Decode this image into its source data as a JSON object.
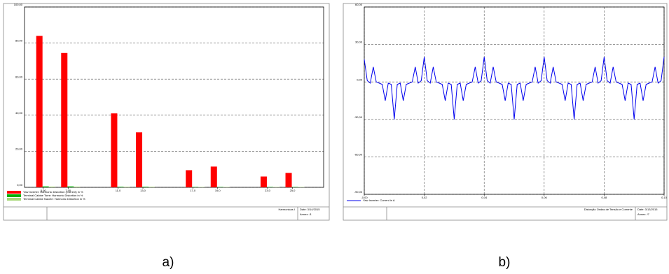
{
  "chart_data": [
    {
      "type": "bar",
      "caption": "a)",
      "x": [
        5,
        7,
        11,
        13,
        17,
        19,
        23,
        25
      ],
      "xlim": [
        3.5,
        27.5
      ],
      "xticks": [
        {
          "value": 5,
          "label": "5,00"
        },
        {
          "value": 7,
          "label": "7,00"
        },
        {
          "value": 11,
          "label": "11,0"
        },
        {
          "value": 13,
          "label": "13,0"
        },
        {
          "value": 17,
          "label": "17,0"
        },
        {
          "value": 19,
          "label": "19,0"
        },
        {
          "value": 23,
          "label": "23,0"
        },
        {
          "value": 25,
          "label": "25,0"
        }
      ],
      "ylim": [
        0,
        100
      ],
      "yticks": [
        {
          "value": 0,
          "label": "0,00"
        },
        {
          "value": 20,
          "label": "20,00"
        },
        {
          "value": 40,
          "label": "40,00"
        },
        {
          "value": 60,
          "label": "60,00"
        },
        {
          "value": 80,
          "label": "80,00"
        },
        {
          "value": 100,
          "label": "100,00"
        }
      ],
      "grid": true,
      "xgrid": false,
      "series": [
        {
          "name": "Yaw Inverter: Harmonic Distortion (Current) in %",
          "color": "#ff0000",
          "values": [
            84,
            74.5,
            41,
            30.5,
            9.5,
            11.5,
            6,
            8
          ]
        },
        {
          "name": "Terminal Cabine Torre: Harmonic Distortion in %",
          "color": "#00b000",
          "values": [
            0.5,
            0.5,
            0.3,
            0.3,
            0.2,
            0.2,
            0.2,
            0.2
          ]
        },
        {
          "name": "Terminal Cabine Nacele: Harmonic Distortion in %",
          "color": "#a8d878",
          "values": [
            0.4,
            0.4,
            0.3,
            0.3,
            0.2,
            0.2,
            0.2,
            0.2
          ]
        }
      ],
      "footer": {
        "title": "Harmonicas I",
        "date": "Date: 3/14/2015",
        "annex": "Annex: /1"
      }
    },
    {
      "type": "line",
      "caption": "b)",
      "x": [
        0,
        0.001,
        0.002,
        0.003,
        0.004,
        0.005,
        0.006,
        0.007,
        0.008,
        0.009,
        0.01,
        0.011,
        0.012,
        0.013,
        0.014,
        0.015,
        0.016,
        0.017,
        0.018,
        0.019,
        0.02,
        0.021,
        0.022,
        0.023,
        0.024,
        0.025,
        0.026,
        0.027,
        0.028,
        0.029,
        0.03,
        0.031,
        0.032,
        0.033,
        0.034,
        0.035,
        0.036,
        0.037,
        0.038,
        0.039,
        0.04,
        0.041,
        0.042,
        0.043,
        0.044,
        0.045,
        0.046,
        0.047,
        0.048,
        0.049,
        0.05,
        0.051,
        0.052,
        0.053,
        0.054,
        0.055,
        0.056,
        0.057,
        0.058,
        0.059,
        0.06,
        0.061,
        0.062,
        0.063,
        0.064,
        0.065,
        0.066,
        0.067,
        0.068,
        0.069,
        0.07,
        0.071,
        0.072,
        0.073,
        0.074,
        0.075,
        0.076,
        0.077,
        0.078,
        0.079,
        0.08,
        0.081,
        0.082,
        0.083,
        0.084,
        0.085,
        0.086,
        0.087,
        0.088,
        0.089,
        0.09,
        0.091,
        0.092,
        0.093,
        0.094,
        0.095,
        0.096,
        0.097,
        0.098,
        0.099,
        0.1
      ],
      "xlim": [
        0,
        0.1
      ],
      "xticks": [
        {
          "value": 0,
          "label": "-0,00"
        },
        {
          "value": 0.02,
          "label": "0,02"
        },
        {
          "value": 0.04,
          "label": "0,04"
        },
        {
          "value": 0.06,
          "label": "0,06"
        },
        {
          "value": 0.08,
          "label": "0,08"
        },
        {
          "value": 0.1,
          "label": "0,10"
        }
      ],
      "ylim": [
        -90,
        60
      ],
      "yticks": [
        {
          "value": -90,
          "label": "-90,00"
        },
        {
          "value": -60,
          "label": "-60,00"
        },
        {
          "value": -30,
          "label": "-30,00"
        },
        {
          "value": 0,
          "label": "0,00"
        },
        {
          "value": 30,
          "label": "30,00"
        },
        {
          "value": 60,
          "label": "60,00"
        }
      ],
      "grid": true,
      "xgrid": true,
      "series": [
        {
          "name": "Yaw Inverter: Current in A",
          "color": "#0000ee",
          "values": [
            18,
            1,
            -1,
            12,
            0,
            -1,
            -2,
            -15,
            -1,
            -2,
            -30,
            -2,
            -1,
            -15,
            -2,
            -1,
            0,
            12,
            -1,
            1,
            20,
            1,
            -1,
            12,
            0,
            -1,
            -2,
            -15,
            -1,
            -2,
            -30,
            -2,
            -1,
            -15,
            -2,
            -1,
            0,
            12,
            -1,
            1,
            20,
            1,
            -1,
            12,
            0,
            -1,
            -2,
            -15,
            -1,
            -2,
            -30,
            -2,
            -1,
            -15,
            -2,
            -1,
            0,
            12,
            -1,
            1,
            20,
            1,
            -1,
            12,
            0,
            -1,
            -2,
            -15,
            -1,
            -2,
            -30,
            -2,
            -1,
            -15,
            -2,
            -1,
            0,
            12,
            -1,
            1,
            20,
            1,
            -1,
            12,
            0,
            -1,
            -2,
            -15,
            -1,
            -2,
            -30,
            -2,
            -1,
            -15,
            -2,
            -1,
            0,
            12,
            -1,
            1,
            20
          ]
        }
      ],
      "footer": {
        "title": "Distorção Ondas de Tensão e Corrente",
        "date": "Date: 3/13/2015",
        "annex": "Annex: /7"
      }
    }
  ]
}
